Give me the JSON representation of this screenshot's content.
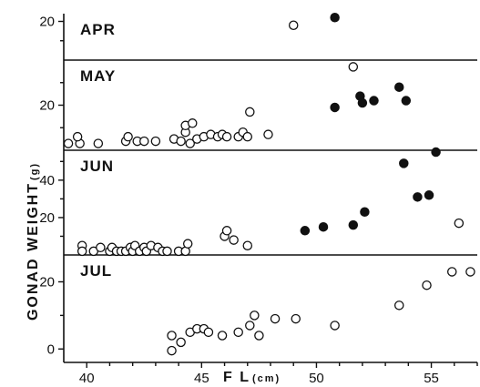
{
  "chart_data": {
    "type": "scatter",
    "xlabel": "F L",
    "xlabel_unit": "(cm)",
    "ylabel": "GONAD WEIGHT",
    "ylabel_unit": "(g)",
    "xlim": [
      39,
      57
    ],
    "xticks": [
      40,
      45,
      50,
      55
    ],
    "legend": "none",
    "grid": false,
    "panels": [
      {
        "name": "APR",
        "ylim": [
          0,
          24
        ],
        "yticks": [
          20
        ],
        "open": [
          [
            49,
            18
          ]
        ],
        "filled": [
          [
            50.8,
            22
          ]
        ]
      },
      {
        "name": "MAY",
        "ylim": [
          0,
          40
        ],
        "yticks": [
          20
        ],
        "open": [
          [
            39.2,
            3
          ],
          [
            39.7,
            3
          ],
          [
            39.6,
            6
          ],
          [
            40.5,
            3
          ],
          [
            41.7,
            4
          ],
          [
            41.8,
            6
          ],
          [
            42.2,
            4
          ],
          [
            42.5,
            4
          ],
          [
            43,
            4
          ],
          [
            43.8,
            5
          ],
          [
            44.1,
            4
          ],
          [
            44.3,
            8
          ],
          [
            44.3,
            11
          ],
          [
            44.5,
            3
          ],
          [
            44.6,
            12
          ],
          [
            44.8,
            5
          ],
          [
            45.1,
            6
          ],
          [
            45.4,
            7
          ],
          [
            45.7,
            6
          ],
          [
            45.9,
            7
          ],
          [
            46.1,
            6
          ],
          [
            46.6,
            6
          ],
          [
            46.8,
            8
          ],
          [
            47,
            6
          ],
          [
            47.1,
            17
          ],
          [
            47.9,
            7
          ],
          [
            51.6,
            37
          ]
        ],
        "filled": [
          [
            50.8,
            19
          ],
          [
            51.9,
            24
          ],
          [
            52,
            21
          ],
          [
            52.5,
            22
          ],
          [
            53.6,
            28
          ],
          [
            53.9,
            22
          ]
        ]
      },
      {
        "name": "JUN",
        "ylim": [
          0,
          56
        ],
        "yticks": [
          20,
          40
        ],
        "open": [
          [
            39.8,
            5
          ],
          [
            39.8,
            2
          ],
          [
            40.3,
            2
          ],
          [
            40.6,
            4
          ],
          [
            41,
            2
          ],
          [
            41.1,
            4
          ],
          [
            41.3,
            2
          ],
          [
            41.5,
            2
          ],
          [
            41.7,
            2
          ],
          [
            41.9,
            4
          ],
          [
            42,
            2
          ],
          [
            42.1,
            5
          ],
          [
            42.3,
            2
          ],
          [
            42.5,
            4
          ],
          [
            42.6,
            2
          ],
          [
            42.8,
            5
          ],
          [
            43.1,
            4
          ],
          [
            43.3,
            2
          ],
          [
            43.5,
            2
          ],
          [
            44,
            2
          ],
          [
            44.3,
            2
          ],
          [
            44.4,
            6
          ],
          [
            46,
            10
          ],
          [
            46.1,
            13
          ],
          [
            46.4,
            8
          ],
          [
            47,
            5
          ],
          [
            56.2,
            17
          ]
        ],
        "filled": [
          [
            49.5,
            13
          ],
          [
            50.3,
            15
          ],
          [
            51.6,
            16
          ],
          [
            52.1,
            23
          ],
          [
            53.8,
            49
          ],
          [
            54.4,
            31
          ],
          [
            54.9,
            32
          ],
          [
            55.2,
            55
          ]
        ]
      },
      {
        "name": "JUL",
        "ylim": [
          -4,
          28
        ],
        "yticks": [
          0,
          20
        ],
        "open": [
          [
            43.7,
            4
          ],
          [
            43.7,
            -0.5
          ],
          [
            44.1,
            2
          ],
          [
            44.5,
            5
          ],
          [
            44.8,
            6
          ],
          [
            45.1,
            6
          ],
          [
            45.3,
            5
          ],
          [
            45.9,
            4
          ],
          [
            46.6,
            5
          ],
          [
            47.1,
            7
          ],
          [
            47.3,
            10
          ],
          [
            47.5,
            4
          ],
          [
            48.2,
            9
          ],
          [
            49.1,
            9
          ],
          [
            50.8,
            7
          ],
          [
            53.6,
            13
          ],
          [
            54.8,
            19
          ],
          [
            55.9,
            23
          ],
          [
            56.7,
            23
          ]
        ],
        "filled": []
      }
    ]
  }
}
